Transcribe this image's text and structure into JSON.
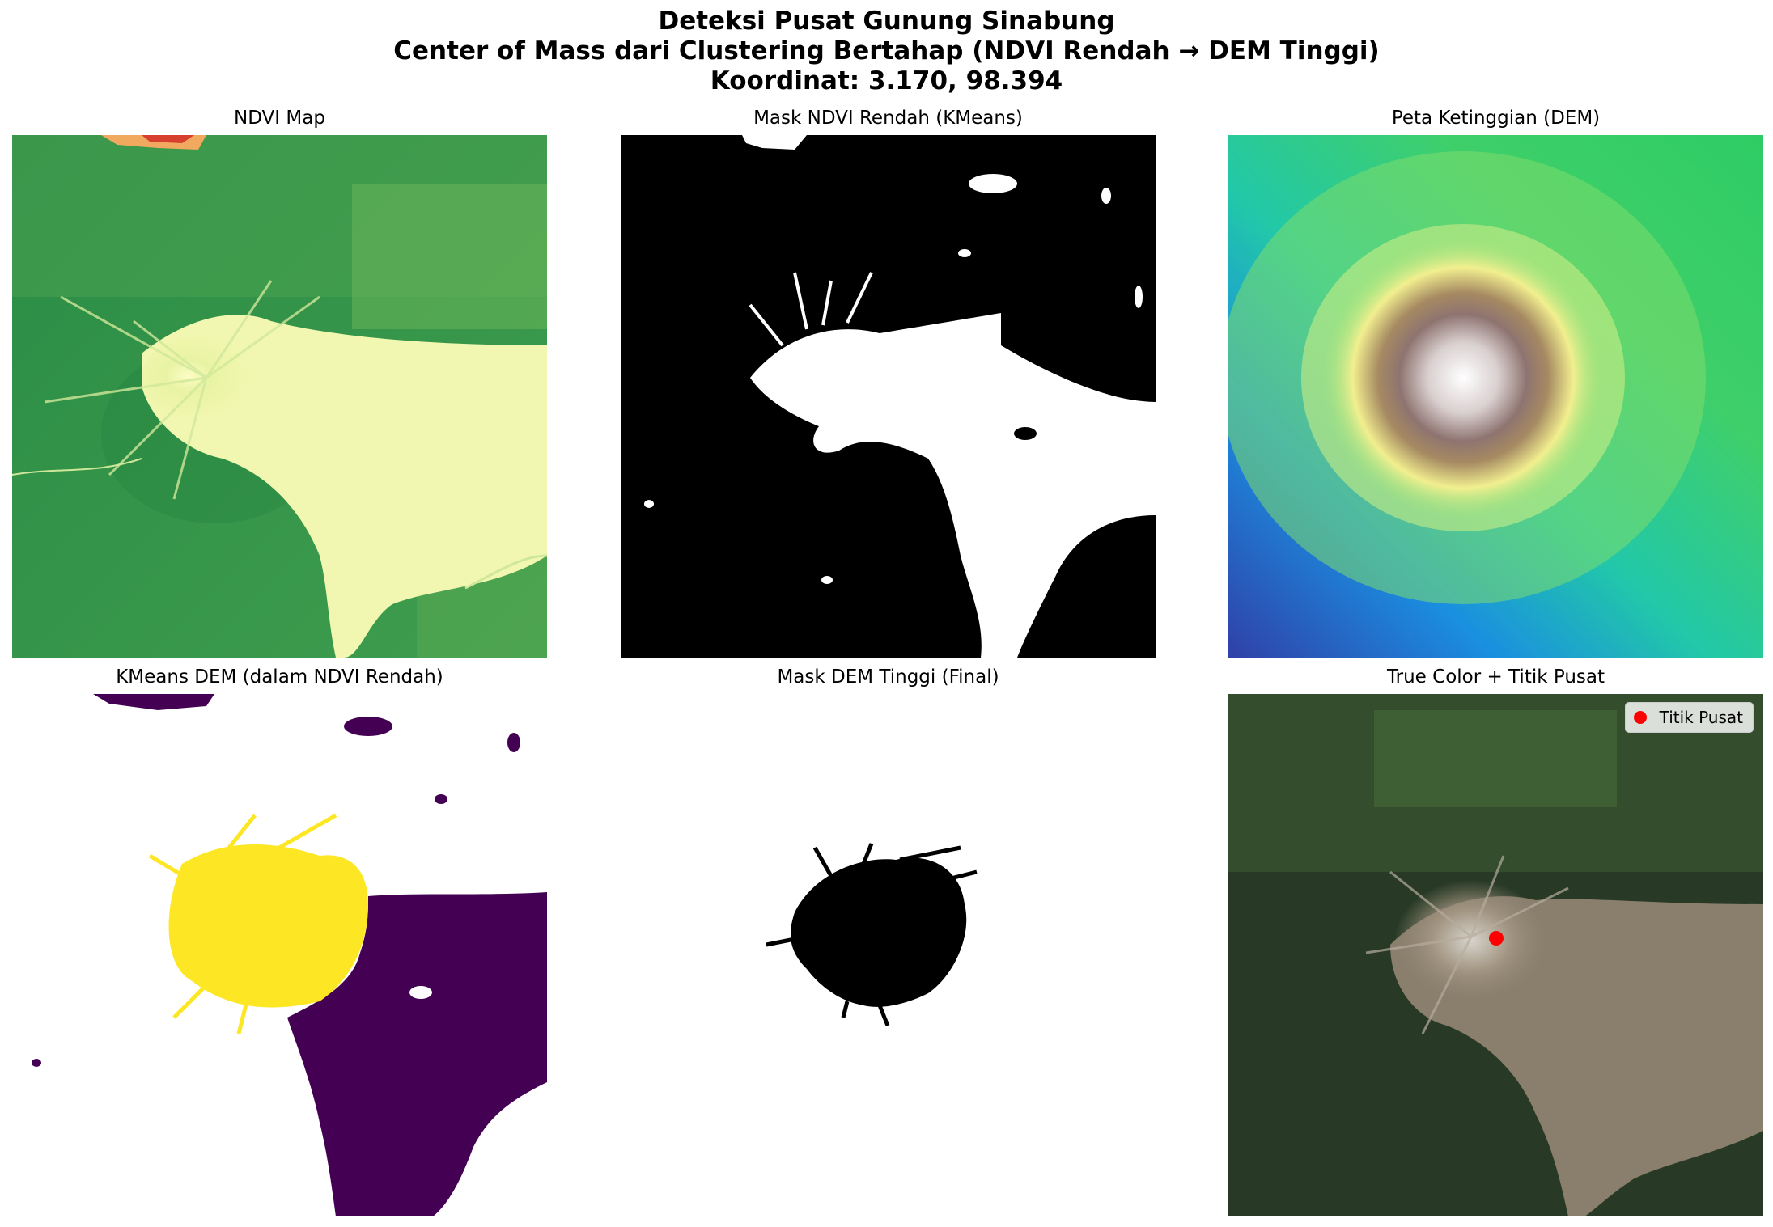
{
  "figure": {
    "title_lines": [
      "Deteksi Pusat Gunung Sinabung",
      "Center of Mass dari Clustering Bertahap (NDVI Rendah → DEM Tinggi)",
      "Koordinat: 3.170, 98.394"
    ]
  },
  "panels": [
    {
      "title": "NDVI Map",
      "colormap": "RdYlGn"
    },
    {
      "title": "Mask NDVI Rendah (KMeans)",
      "colormap": "gray"
    },
    {
      "title": "Peta Ketinggian (DEM)",
      "colormap": "terrain"
    },
    {
      "title": "KMeans DEM (dalam NDVI Rendah)",
      "colormap": "viridis"
    },
    {
      "title": "Mask DEM Tinggi (Final)",
      "colormap": "gray"
    },
    {
      "title": "True Color + Titik Pusat",
      "legend": {
        "label": "Titik Pusat",
        "marker_color": "#ff0000"
      }
    }
  ],
  "colors": {
    "ndvi_high": "#2e8b42",
    "ndvi_low": "#f4f7b2",
    "ndvi_very_low": "#d7402e",
    "mask_on": "#ffffff",
    "mask_off": "#000000",
    "dem_low": "#3040a8",
    "dem_mid": "#3fcf6a",
    "dem_high": "#ffffff",
    "viridis_low": "#440154",
    "viridis_high": "#fde725",
    "center_marker": "#ff0000"
  }
}
